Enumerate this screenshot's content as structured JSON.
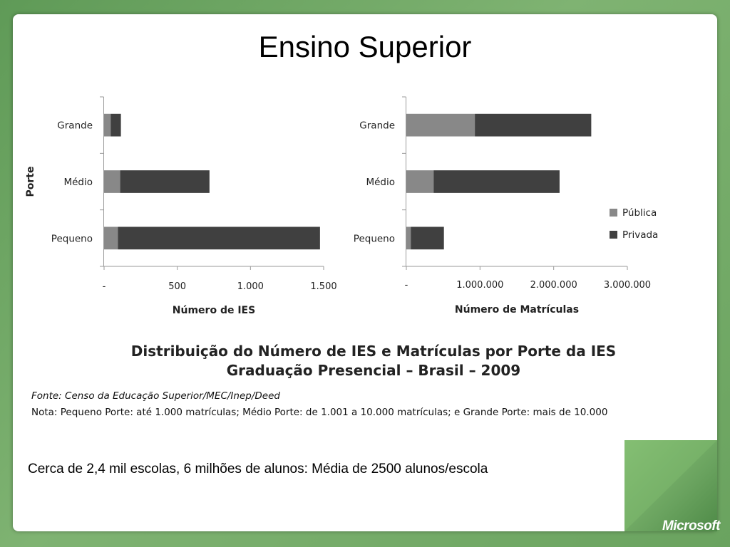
{
  "slide": {
    "title": "Ensino Superior",
    "caption": "Cerca de 2,4 mil escolas, 6 milhões de alunos: Média de 2500 alunos/escola",
    "logo_text": "Microsoft"
  },
  "figure": {
    "heading_line1": "Distribuição do Número de IES e Matrículas por Porte da IES",
    "heading_line2": "Graduação Presencial – Brasil – 2009",
    "source": "Fonte: Censo da Educação Superior/MEC/Inep/Deed",
    "note": "Nota: Pequeno Porte: até 1.000 matrículas; Médio Porte: de 1.001 a 10.000 matrículas; e Grande Porte: mais de 10.000"
  },
  "chart_data": [
    {
      "type": "bar",
      "orientation": "horizontal",
      "stacked": true,
      "categories": [
        "Grande",
        "Médio",
        "Pequeno"
      ],
      "series": [
        {
          "name": "Pública",
          "values": [
            45,
            110,
            95
          ],
          "color": "#888888"
        },
        {
          "name": "Privada",
          "values": [
            70,
            610,
            1380
          ],
          "color": "#404040"
        }
      ],
      "xlabel": "Número de IES",
      "ylabel": "Porte",
      "xlim": [
        0,
        1500
      ],
      "xticks": [
        0,
        500,
        1000,
        1500
      ],
      "xtick_labels": [
        "-",
        "500",
        "1.000",
        "1.500"
      ]
    },
    {
      "type": "bar",
      "orientation": "horizontal",
      "stacked": true,
      "categories": [
        "Grande",
        "Médio",
        "Pequeno"
      ],
      "series": [
        {
          "name": "Pública",
          "values": [
            930000,
            370000,
            60000
          ],
          "color": "#888888"
        },
        {
          "name": "Privada",
          "values": [
            1580000,
            1710000,
            450000
          ],
          "color": "#404040"
        }
      ],
      "xlabel": "Número de Matrículas",
      "ylabel": "",
      "xlim": [
        0,
        3000000
      ],
      "xticks": [
        0,
        1000000,
        2000000,
        3000000
      ],
      "xtick_labels": [
        "-",
        "1.000.000",
        "2.000.000",
        "3.000.000"
      ],
      "legend": {
        "position": "right",
        "entries": [
          "Pública",
          "Privada"
        ]
      }
    }
  ]
}
